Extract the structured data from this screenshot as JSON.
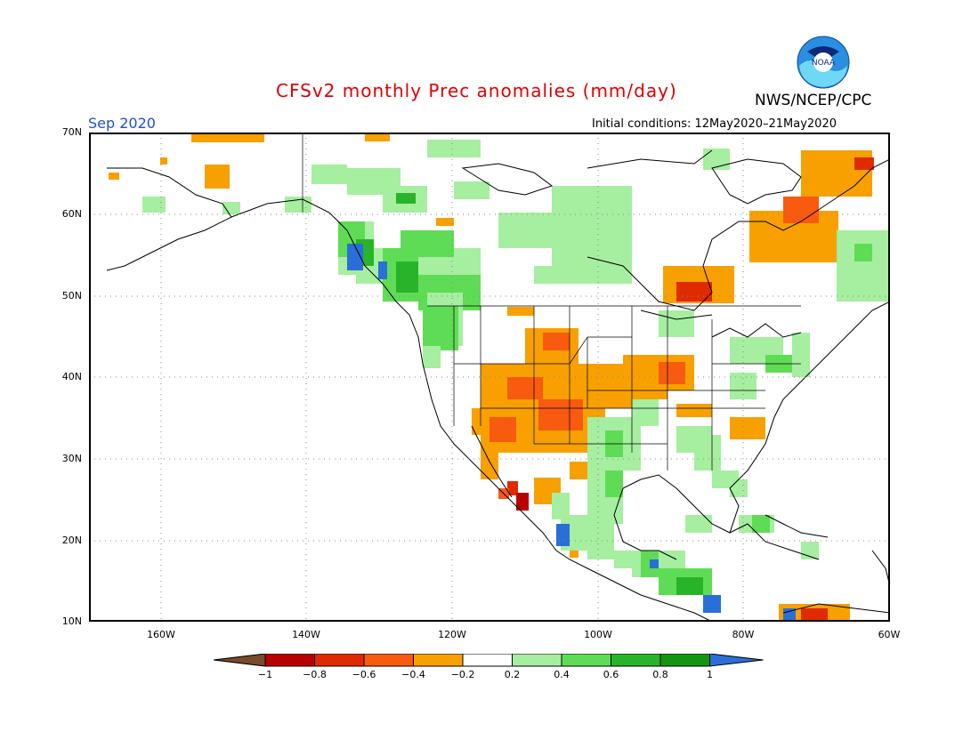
{
  "title": "CFSv2 monthly Prec anomalies (mm/day)",
  "organization": "NWS/NCEP/CPC",
  "logo_text": "NOAA",
  "month": "Sep 2020",
  "initial_conditions": "Initial conditions: 12May2020–21May2020",
  "lat_labels": [
    "70N",
    "60N",
    "50N",
    "40N",
    "30N",
    "20N",
    "10N"
  ],
  "lon_labels": [
    "160W",
    "140W",
    "120W",
    "100W",
    "80W",
    "60W"
  ],
  "colorbar": {
    "labels": [
      "−1",
      "−0.8",
      "−0.6",
      "−0.4",
      "−0.2",
      "0.2",
      "0.4",
      "0.6",
      "0.8",
      "1"
    ],
    "colors": [
      "#7a4a2a",
      "#b80000",
      "#e02a00",
      "#f85a10",
      "#f7a000",
      "#ffffff",
      "#a6eea0",
      "#5fdc55",
      "#28b428",
      "#129612",
      "#2a6fd8"
    ]
  },
  "colors": {
    "title": "#e00000",
    "month": "#1f4fd6",
    "land_outline": "#000000",
    "grid": "#666666"
  }
}
